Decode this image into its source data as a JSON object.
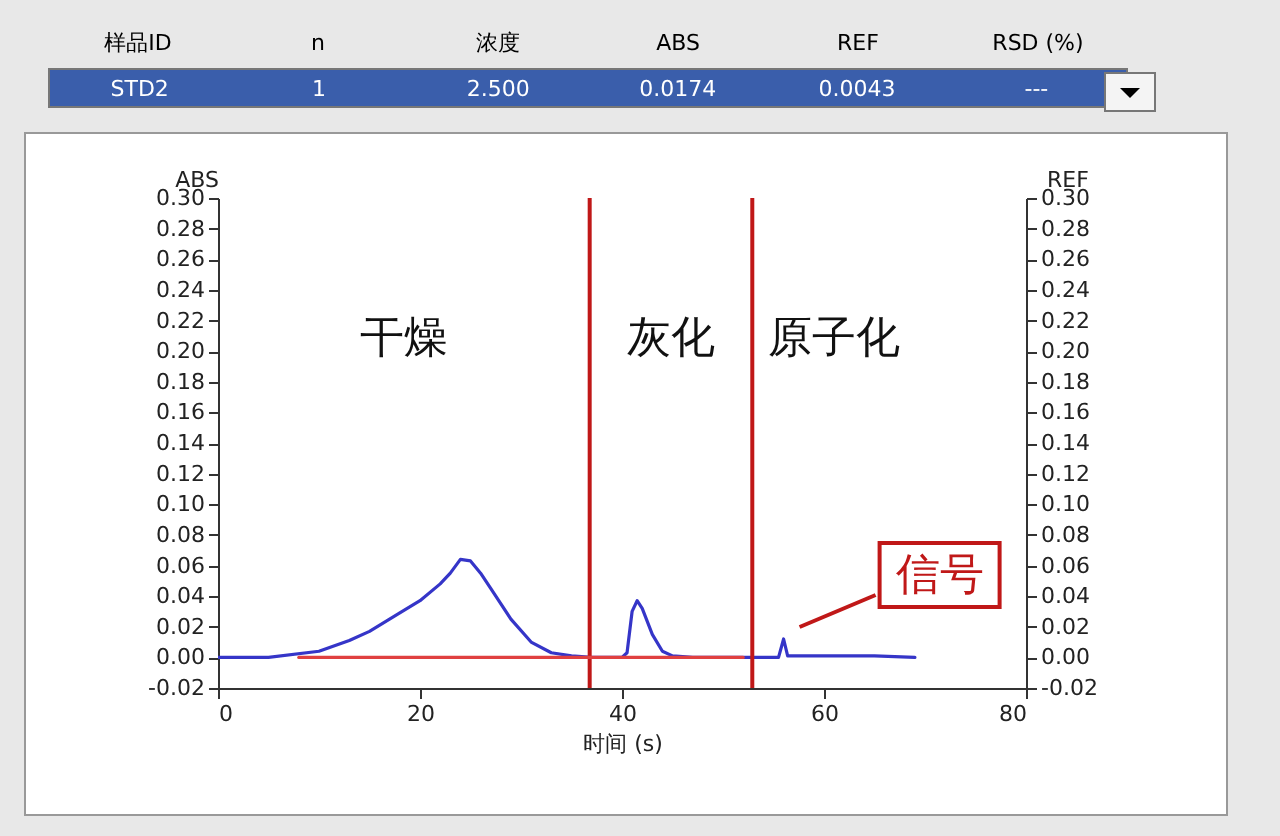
{
  "chart_data": {
    "type": "line",
    "xlabel": "时间 (s)",
    "ylabel": "ABS",
    "y2label": "REF",
    "annotations": [
      "样品ID",
      "n",
      "浓度",
      "ABS",
      "REF",
      "RSD (%)",
      "STD2",
      "1",
      "2.500",
      "0.0174",
      "0.0043",
      "---",
      "干燥",
      "灰化",
      "原子化",
      {
        "text": "信号",
        "x": 56,
        "y": 0.012
      }
    ],
    "series": [
      {
        "color": "#3535c8",
        "x": [
          0,
          5,
          10,
          13,
          15,
          18,
          20,
          22,
          23,
          24,
          25,
          26,
          27,
          29,
          31,
          33,
          35,
          37,
          40,
          40.5,
          41,
          41.5,
          42,
          43,
          44,
          45,
          47,
          52,
          55.5,
          56,
          56.4,
          58,
          60,
          65,
          69
        ],
        "values": [
          0,
          0,
          0.004,
          0.011,
          0.017,
          0.029,
          0.037,
          0.048,
          0.055,
          0.064,
          0.063,
          0.055,
          0.045,
          0.025,
          0.01,
          0.003,
          0.001,
          0,
          0,
          0.003,
          0.03,
          0.037,
          0.032,
          0.015,
          0.004,
          0.001,
          0,
          0,
          0,
          0.012,
          0.001,
          0.001,
          0.001,
          0.001,
          0
        ]
      },
      {
        "color": "#e04040",
        "axis": "y2",
        "x": [
          8,
          20,
          30,
          37,
          45,
          52
        ],
        "values": [
          0,
          0,
          0,
          0,
          0,
          0
        ]
      }
    ],
    "xlim": [
      0,
      80
    ],
    "xticks": [
      0,
      20,
      40,
      60,
      80
    ],
    "ylim": [
      -0.02,
      0.3
    ],
    "yticks": [
      {
        "value": -0.02,
        "label": "-0.02"
      },
      {
        "value": 0,
        "label": "0.00"
      },
      {
        "value": 0.02,
        "label": "0.02"
      },
      {
        "value": 0.04,
        "label": "0.04"
      },
      {
        "value": 0.06,
        "label": "0.06"
      },
      {
        "value": 0.08,
        "label": "0.08"
      },
      {
        "value": 0.1,
        "label": "0.10"
      },
      {
        "value": 0.12,
        "label": "0.12"
      },
      {
        "value": 0.14,
        "label": "0.14"
      },
      {
        "value": 0.16,
        "label": "0.16"
      },
      {
        "value": 0.18,
        "label": "0.18"
      },
      {
        "value": 0.2,
        "label": "0.20"
      },
      {
        "value": 0.22,
        "label": "0.22"
      },
      {
        "value": 0.24,
        "label": "0.24"
      },
      {
        "value": 0.26,
        "label": "0.26"
      },
      {
        "value": 0.28,
        "label": "0.28"
      },
      {
        "value": 0.3,
        "label": "0.30"
      }
    ],
    "y2lim": [
      -0.02,
      0.3
    ],
    "y2ticks": [
      {
        "value": -0.02,
        "label": "-0.02"
      },
      {
        "value": 0,
        "label": "0.00"
      },
      {
        "value": 0.02,
        "label": "0.02"
      },
      {
        "value": 0.04,
        "label": "0.04"
      },
      {
        "value": 0.06,
        "label": "0.06"
      },
      {
        "value": 0.08,
        "label": "0.08"
      },
      {
        "value": 0.1,
        "label": "0.10"
      },
      {
        "value": 0.12,
        "label": "0.12"
      },
      {
        "value": 0.14,
        "label": "0.14"
      },
      {
        "value": 0.16,
        "label": "0.16"
      },
      {
        "value": 0.18,
        "label": "0.18"
      },
      {
        "value": 0.2,
        "label": "0.20"
      },
      {
        "value": 0.22,
        "label": "0.22"
      },
      {
        "value": 0.24,
        "label": "0.24"
      },
      {
        "value": 0.26,
        "label": "0.26"
      },
      {
        "value": 0.28,
        "label": "0.28"
      },
      {
        "value": 0.3,
        "label": "0.30"
      }
    ],
    "ref_lines": [
      {
        "axis": "x",
        "value": 36.8,
        "color": "#c01818"
      },
      {
        "axis": "x",
        "value": 52.9,
        "color": "#c01818"
      }
    ],
    "marker": "none",
    "line_style": "solid"
  }
}
